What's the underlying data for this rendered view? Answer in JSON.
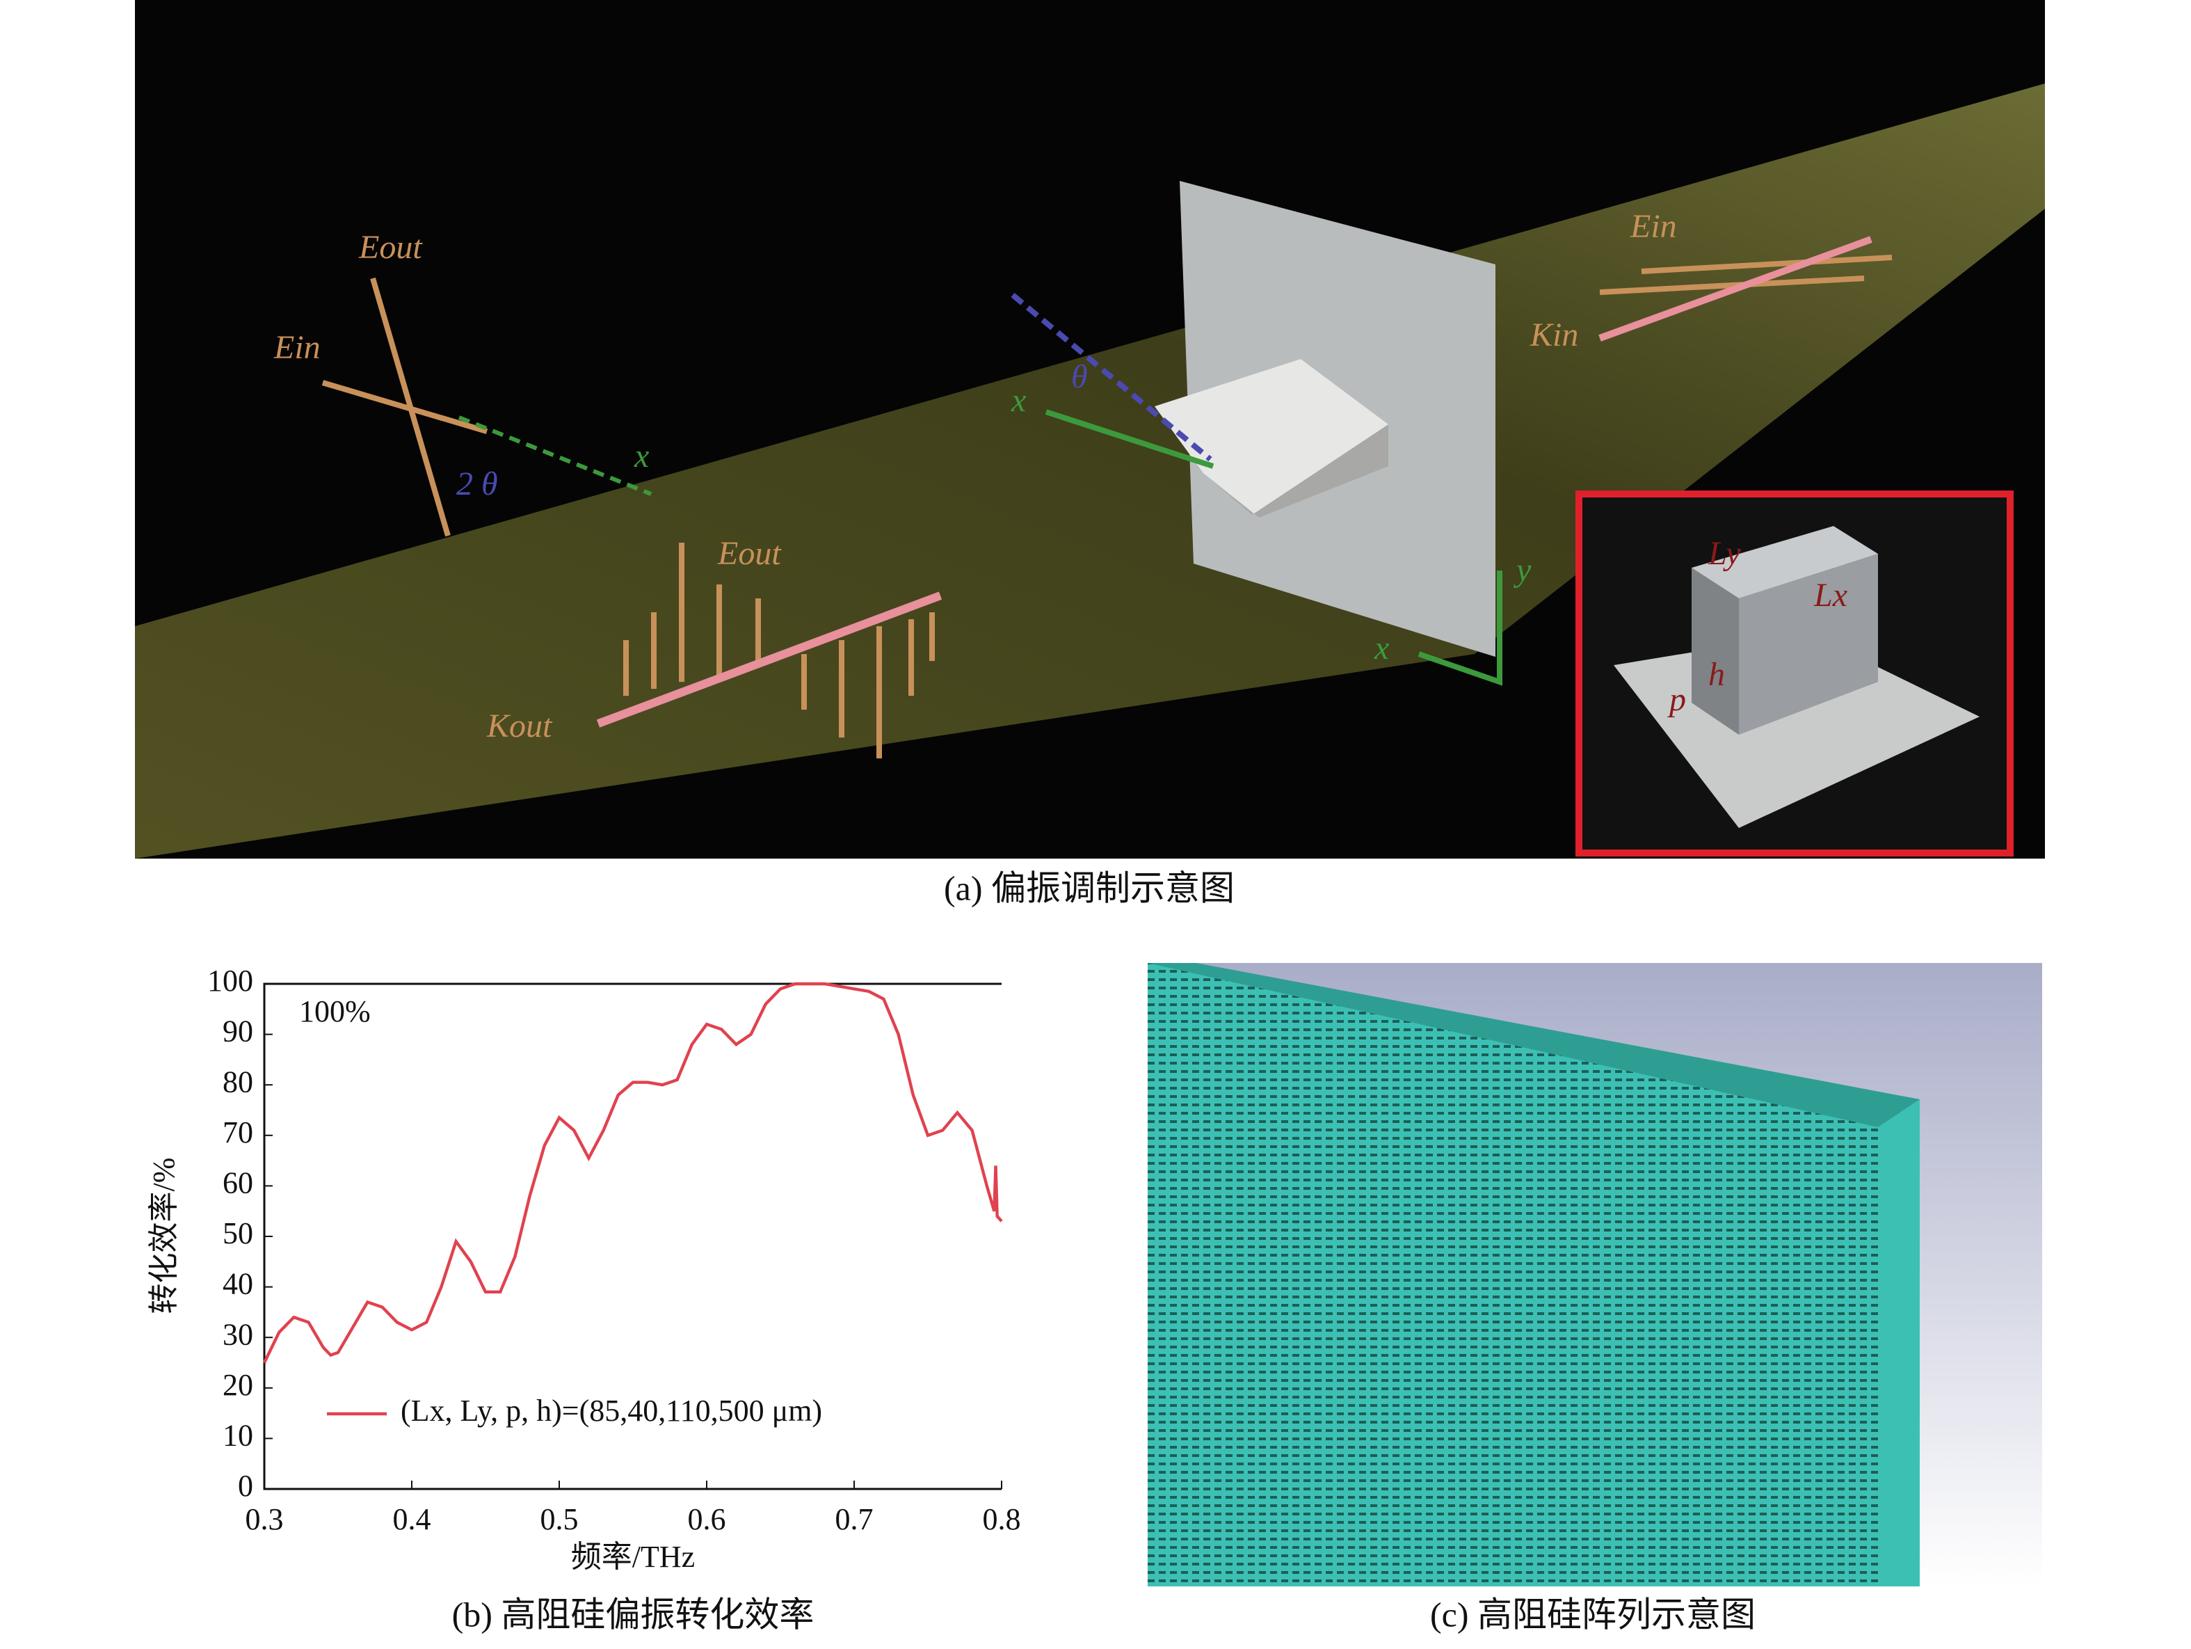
{
  "panel_a": {
    "caption": "(a) 偏振调制示意图",
    "labels": {
      "eout_left": "Eout",
      "ein_left": "Ein",
      "x_left": "x",
      "two_theta": "2 θ",
      "eout_bottom": "Eout",
      "kout": "Kout",
      "x_center": "x",
      "theta": "θ",
      "ein_right": "Ein",
      "kin": "Kin",
      "y_axis": "y",
      "x_axis": "x",
      "ly": "Ly",
      "lx": "Lx",
      "h": "h",
      "p": "p"
    }
  },
  "chart_data": {
    "type": "line",
    "xlabel": "频率/THz",
    "ylabel": "转化效率/%",
    "annotation": "100%",
    "x": [
      0.3,
      0.31,
      0.32,
      0.33,
      0.34,
      0.345,
      0.35,
      0.36,
      0.37,
      0.38,
      0.39,
      0.4,
      0.41,
      0.42,
      0.43,
      0.44,
      0.45,
      0.46,
      0.47,
      0.48,
      0.49,
      0.5,
      0.51,
      0.52,
      0.53,
      0.54,
      0.55,
      0.56,
      0.57,
      0.58,
      0.59,
      0.6,
      0.61,
      0.62,
      0.63,
      0.64,
      0.65,
      0.66,
      0.67,
      0.68,
      0.69,
      0.7,
      0.71,
      0.72,
      0.73,
      0.74,
      0.75,
      0.76,
      0.77,
      0.78,
      0.79,
      0.795,
      0.796,
      0.797,
      0.8
    ],
    "series": [
      {
        "name": "(Lx, Ly, p, h)=(85,40,110,500 μm)",
        "color": "#e0424f",
        "values": [
          25,
          31,
          34,
          33,
          28,
          26.5,
          27,
          32,
          37,
          36,
          33,
          31.5,
          33,
          40,
          49,
          45,
          39,
          39,
          46,
          58,
          68,
          73.5,
          71,
          65.5,
          71,
          78,
          80.5,
          80.5,
          80,
          81,
          88,
          92,
          91,
          88,
          90,
          96,
          99,
          100,
          100,
          100,
          99.5,
          99,
          98.5,
          97,
          90,
          78,
          70,
          71,
          74.5,
          71,
          60,
          55,
          64,
          54,
          53
        ]
      }
    ],
    "xlim": [
      0.3,
      0.8
    ],
    "ylim": [
      0,
      100
    ],
    "xticks": [
      0.3,
      0.4,
      0.5,
      0.6,
      0.7,
      0.8
    ],
    "yticks": [
      0,
      10,
      20,
      30,
      40,
      50,
      60,
      70,
      80,
      90,
      100
    ],
    "caption": "(b) 高阻硅偏振转化效率"
  },
  "panel_c": {
    "caption": "(c) 高阻硅阵列示意图"
  }
}
